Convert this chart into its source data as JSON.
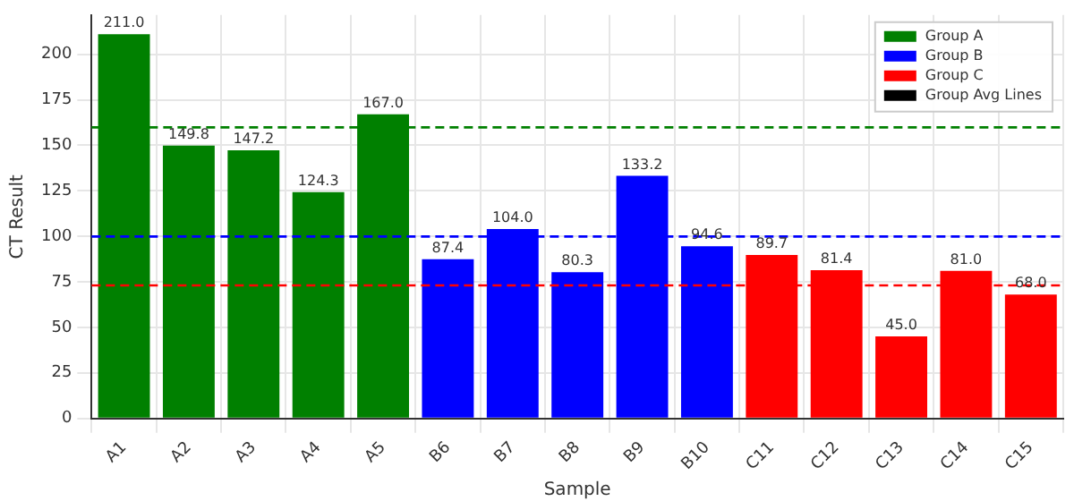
{
  "chart_data": {
    "type": "bar",
    "xlabel": "Sample",
    "ylabel": "CT Result",
    "categories": [
      "A1",
      "A2",
      "A3",
      "A4",
      "A5",
      "B6",
      "B7",
      "B8",
      "B9",
      "B10",
      "C11",
      "C12",
      "C13",
      "C14",
      "C15"
    ],
    "series": [
      {
        "name": "Group A",
        "color": "#008000",
        "values": [
          211.0,
          149.8,
          147.2,
          124.3,
          167.0,
          null,
          null,
          null,
          null,
          null,
          null,
          null,
          null,
          null,
          null
        ],
        "value_labels": [
          "211.0",
          "149.8",
          "147.2",
          "124.3",
          "167.0",
          null,
          null,
          null,
          null,
          null,
          null,
          null,
          null,
          null,
          null
        ]
      },
      {
        "name": "Group B",
        "color": "#0000ff",
        "values": [
          null,
          null,
          null,
          null,
          null,
          87.4,
          104.0,
          80.3,
          133.2,
          94.6,
          null,
          null,
          null,
          null,
          null
        ],
        "value_labels": [
          null,
          null,
          null,
          null,
          null,
          "87.4",
          "104.0",
          "80.3",
          "133.2",
          "94.6",
          null,
          null,
          null,
          null,
          null
        ]
      },
      {
        "name": "Group C",
        "color": "#ff0000",
        "values": [
          null,
          null,
          null,
          null,
          null,
          null,
          null,
          null,
          null,
          null,
          89.7,
          81.4,
          45.0,
          81.0,
          68.0
        ],
        "value_labels": [
          null,
          null,
          null,
          null,
          null,
          null,
          null,
          null,
          null,
          null,
          "89.7",
          "81.4",
          "45.0",
          "81.0",
          "68.0"
        ]
      },
      {
        "name": "Group Avg Lines",
        "color": "#000000",
        "values": [
          null,
          null,
          null,
          null,
          null,
          null,
          null,
          null,
          null,
          null,
          null,
          null,
          null,
          null,
          null
        ]
      }
    ],
    "ref_lines": [
      {
        "axis": "y",
        "value": 159.86,
        "color": "#008000",
        "line_style": "dashed"
      },
      {
        "axis": "y",
        "value": 99.9,
        "color": "#0000ff",
        "line_style": "dashed"
      },
      {
        "axis": "y",
        "value": 73.02,
        "color": "#ff0000",
        "line_style": "dashed"
      }
    ],
    "ylim": [
      0,
      221.55
    ],
    "yticks": [
      0,
      25,
      50,
      75,
      100,
      125,
      150,
      175,
      200
    ],
    "grid": true,
    "legend": "top right"
  }
}
